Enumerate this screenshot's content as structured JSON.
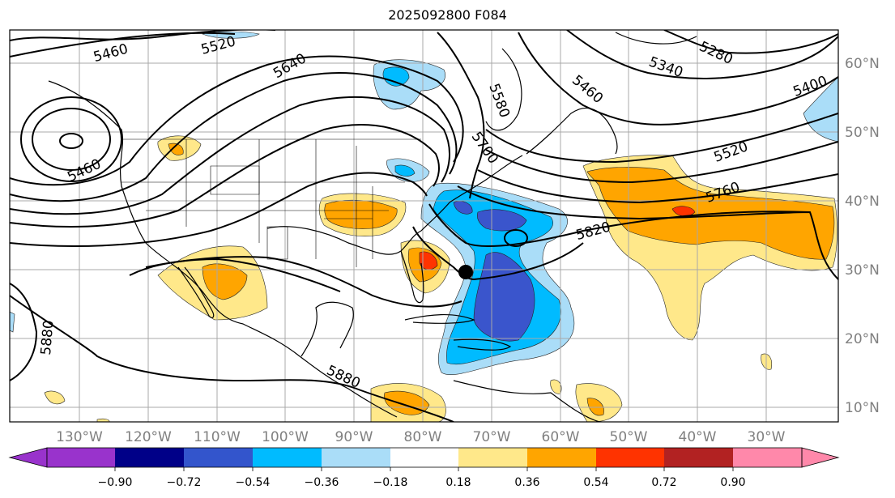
{
  "title": "2025092800 F084",
  "map": {
    "lon_labels": [
      "130°W",
      "120°W",
      "110°W",
      "100°W",
      "90°W",
      "80°W",
      "70°W",
      "60°W",
      "50°W",
      "40°W",
      "30°W"
    ],
    "lat_labels": [
      "60°N",
      "50°N",
      "40°N",
      "30°N",
      "20°N",
      "10°N"
    ],
    "contour_labels": [
      "5460",
      "5520",
      "5640",
      "5580",
      "5460",
      "5280",
      "5340",
      "5400",
      "5460",
      "5700",
      "5520",
      "5760",
      "5820",
      "5880",
      "5880"
    ],
    "marker": "hurricane-center-dot"
  },
  "colorbar": {
    "ticks": [
      "−0.90",
      "−0.72",
      "−0.54",
      "−0.36",
      "−0.18",
      "0.18",
      "0.36",
      "0.54",
      "0.72",
      "0.90"
    ],
    "colors": [
      "#9933cc",
      "#000088",
      "#3355cc",
      "#00bbff",
      "#aaddf8",
      "#ffffff",
      "#ffe88a",
      "#ffa500",
      "#ff3300",
      "#b22222",
      "#ff88aa"
    ]
  },
  "colors": {
    "neg_light": "#aaddf8",
    "neg_mid": "#00bbff",
    "neg_dark": "#3a55cc",
    "pos_light": "#ffe88a",
    "pos_mid": "#ffa500",
    "pos_dark": "#ff3300"
  }
}
